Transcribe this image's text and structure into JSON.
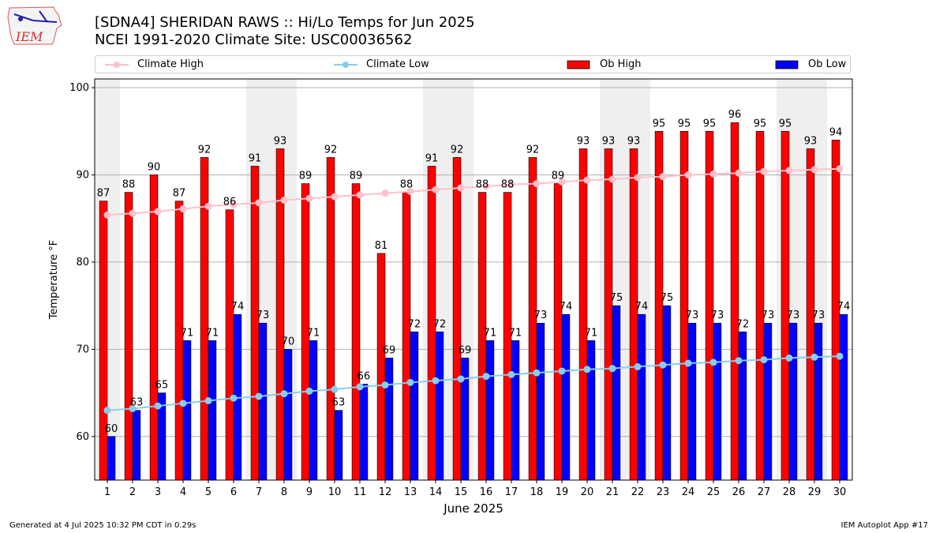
{
  "header": {
    "logo_text": "IEM",
    "title_line1": "[SDNA4] SHERIDAN RAWS :: Hi/Lo Temps for Jun 2025",
    "title_line2": "NCEI 1991-2020 Climate Site: USC00036562"
  },
  "footer": {
    "generated": "Generated at 4 Jul 2025 10:32 PM CDT in 0.29s",
    "app": "IEM Autoplot App #17"
  },
  "chart_data": {
    "type": "bar",
    "xlabel": "June 2025",
    "ylabel": "Temperature °F",
    "ylim": [
      55,
      101
    ],
    "yticks": [
      60,
      70,
      80,
      90,
      100
    ],
    "grid": "horizontal",
    "legend_position": "top",
    "weekend_shading": [
      [
        1,
        1
      ],
      [
        7,
        8
      ],
      [
        14,
        15
      ],
      [
        21,
        22
      ],
      [
        28,
        29
      ]
    ],
    "categories": [
      "1",
      "2",
      "3",
      "4",
      "5",
      "6",
      "7",
      "8",
      "9",
      "10",
      "11",
      "12",
      "13",
      "14",
      "15",
      "16",
      "17",
      "18",
      "19",
      "20",
      "21",
      "22",
      "23",
      "24",
      "25",
      "26",
      "27",
      "28",
      "29",
      "30"
    ],
    "series": [
      {
        "name": "Climate High",
        "kind": "line",
        "color": "#ffc0cb",
        "values": [
          85.4,
          85.6,
          85.8,
          86.1,
          86.4,
          86.6,
          86.8,
          87.1,
          87.3,
          87.5,
          87.7,
          87.9,
          88.1,
          88.3,
          88.5,
          88.7,
          88.9,
          89.0,
          89.2,
          89.4,
          89.5,
          89.7,
          89.8,
          90.0,
          90.1,
          90.2,
          90.4,
          90.5,
          90.6,
          90.7
        ]
      },
      {
        "name": "Climate Low",
        "kind": "line",
        "color": "#87ceeb",
        "values": [
          63.0,
          63.2,
          63.5,
          63.8,
          64.1,
          64.4,
          64.6,
          64.9,
          65.2,
          65.4,
          65.7,
          65.9,
          66.2,
          66.4,
          66.6,
          66.9,
          67.1,
          67.3,
          67.5,
          67.7,
          67.8,
          68.0,
          68.2,
          68.4,
          68.5,
          68.7,
          68.8,
          69.0,
          69.1,
          69.2
        ]
      },
      {
        "name": "Ob High",
        "kind": "bar",
        "color": "#ff0000",
        "values": [
          87,
          88,
          90,
          87,
          92,
          86,
          91,
          93,
          89,
          92,
          89,
          81,
          88,
          91,
          92,
          88,
          88,
          92,
          89,
          93,
          93,
          93,
          95,
          95,
          95,
          96,
          95,
          95,
          93,
          94
        ]
      },
      {
        "name": "Ob Low",
        "kind": "bar",
        "color": "#0000ff",
        "values": [
          60,
          63,
          65,
          71,
          71,
          74,
          73,
          70,
          71,
          63,
          66,
          69,
          72,
          72,
          69,
          71,
          71,
          73,
          74,
          71,
          75,
          74,
          75,
          73,
          73,
          72,
          73,
          73,
          73,
          74
        ]
      }
    ]
  }
}
